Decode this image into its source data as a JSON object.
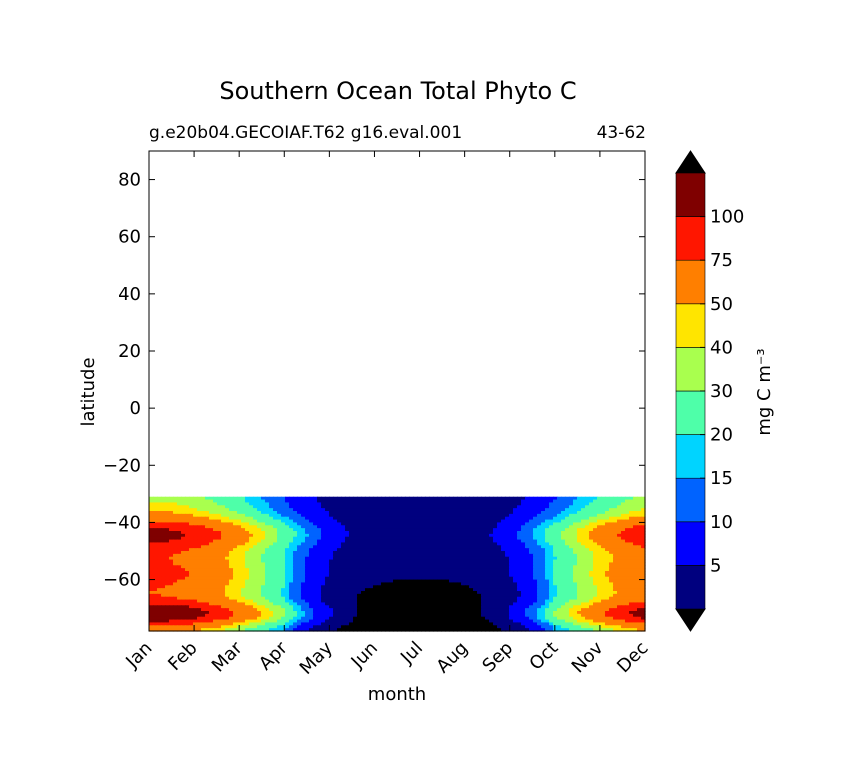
{
  "chart_data": {
    "type": "contour",
    "title": "Southern Ocean Total Phyto C",
    "subtitle_left": "g.e20b04.GECOIAF.T62 g16.eval.001",
    "subtitle_right": "43-62",
    "xlabel": "month",
    "ylabel": "latitude",
    "x_categories": [
      "Jan",
      "Feb",
      "Mar",
      "Apr",
      "May",
      "Jun",
      "Jul",
      "Aug",
      "Sep",
      "Oct",
      "Nov",
      "Dec"
    ],
    "ylim": [
      -78,
      90
    ],
    "yticks": [
      80,
      60,
      40,
      20,
      0,
      -20,
      -40,
      -60
    ],
    "yticklabels": [
      "80",
      "60",
      "40",
      "20",
      "0",
      "−20",
      "−40",
      "−60"
    ],
    "data_lat_range": [
      -78,
      -31
    ],
    "colorbar": {
      "label": "mg C m⁻³",
      "levels": [
        0,
        5,
        10,
        15,
        20,
        30,
        40,
        50,
        75,
        100
      ],
      "tick_labels": [
        "5",
        "10",
        "15",
        "20",
        "30",
        "40",
        "50",
        "75",
        "100"
      ],
      "colors": [
        "#00007f",
        "#0000ff",
        "#0063ff",
        "#00d4ff",
        "#4effa9",
        "#a9ff4e",
        "#ffe500",
        "#ff7f00",
        "#ff1600",
        "#7f0000"
      ],
      "extend": "both",
      "over_color": "#000000",
      "under_color": "#000000"
    },
    "grid": false
  }
}
